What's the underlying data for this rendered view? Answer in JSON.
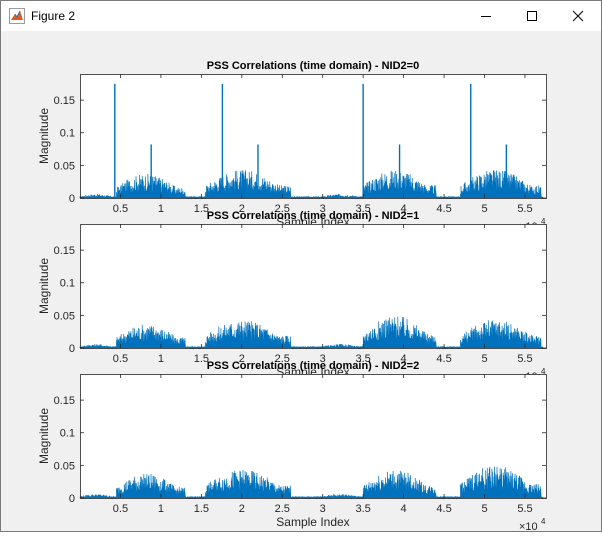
{
  "window": {
    "title": "Figure 2",
    "icon": "matlab-figure-icon",
    "controls": [
      "minimize-icon",
      "maximize-icon",
      "close-icon"
    ]
  },
  "colors": {
    "plot": "#0072bd",
    "axes": "#262626",
    "figure_bg": "#f0f0f0"
  },
  "chart_data": [
    {
      "type": "line",
      "title": "PSS Correlations (time domain) - NID2=0",
      "xlabel": "Sample Index",
      "ylabel": "Magnitude",
      "x_exponent": "×10",
      "x_exponent_power": "4",
      "xlim": [
        0,
        57600
      ],
      "ylim": [
        0,
        0.19
      ],
      "xticks": [
        5000,
        10000,
        15000,
        20000,
        25000,
        30000,
        35000,
        40000,
        45000,
        50000,
        55000
      ],
      "xtick_labels": [
        "0.5",
        "1",
        "1.5",
        "2",
        "2.5",
        "3",
        "3.5",
        "4",
        "4.5",
        "5",
        "5.5"
      ],
      "yticks": [
        0,
        0.05,
        0.1,
        0.15
      ],
      "ytick_labels": [
        "0",
        "0.05",
        "0.1",
        "0.15"
      ],
      "segments": [
        [
          0,
          4500,
          0.005
        ],
        [
          4500,
          13000,
          0.03
        ],
        [
          15500,
          26000,
          0.035
        ],
        [
          30000,
          35000,
          0.005
        ],
        [
          35000,
          44000,
          0.035
        ],
        [
          47000,
          57000,
          0.035
        ]
      ],
      "peaks": [
        [
          4300,
          0.175
        ],
        [
          8800,
          0.082
        ],
        [
          17600,
          0.175
        ],
        [
          22000,
          0.082
        ],
        [
          35000,
          0.175
        ],
        [
          39500,
          0.082
        ],
        [
          48300,
          0.175
        ],
        [
          52700,
          0.082
        ]
      ]
    },
    {
      "type": "line",
      "title": "PSS Correlations (time domain) - NID2=1",
      "xlabel": "Sample Index",
      "ylabel": "Magnitude",
      "x_exponent": "×10",
      "x_exponent_power": "4",
      "xlim": [
        0,
        57600
      ],
      "ylim": [
        0,
        0.19
      ],
      "xticks": [
        5000,
        10000,
        15000,
        20000,
        25000,
        30000,
        35000,
        40000,
        45000,
        50000,
        55000
      ],
      "xtick_labels": [
        "0.5",
        "1",
        "1.5",
        "2",
        "2.5",
        "3",
        "3.5",
        "4",
        "4.5",
        "5",
        "5.5"
      ],
      "yticks": [
        0,
        0.05,
        0.1,
        0.15
      ],
      "ytick_labels": [
        "0",
        "0.05",
        "0.1",
        "0.15"
      ],
      "segments": [
        [
          0,
          4500,
          0.005
        ],
        [
          4500,
          13000,
          0.03
        ],
        [
          15500,
          26000,
          0.035
        ],
        [
          30000,
          35000,
          0.005
        ],
        [
          35000,
          44000,
          0.04
        ],
        [
          47000,
          57000,
          0.035
        ]
      ],
      "peaks": []
    },
    {
      "type": "line",
      "title": "PSS Correlations (time domain) - NID2=2",
      "xlabel": "Sample Index",
      "ylabel": "Magnitude",
      "x_exponent": "×10",
      "x_exponent_power": "4",
      "xlim": [
        0,
        57600
      ],
      "ylim": [
        0,
        0.19
      ],
      "xticks": [
        5000,
        10000,
        15000,
        20000,
        25000,
        30000,
        35000,
        40000,
        45000,
        50000,
        55000
      ],
      "xtick_labels": [
        "0.5",
        "1",
        "1.5",
        "2",
        "2.5",
        "3",
        "3.5",
        "4",
        "4.5",
        "5",
        "5.5"
      ],
      "yticks": [
        0,
        0.05,
        0.1,
        0.15
      ],
      "ytick_labels": [
        "0",
        "0.05",
        "0.1",
        "0.15"
      ],
      "segments": [
        [
          0,
          4500,
          0.005
        ],
        [
          4500,
          13000,
          0.03
        ],
        [
          15500,
          26000,
          0.035
        ],
        [
          30000,
          35000,
          0.005
        ],
        [
          35000,
          44000,
          0.035
        ],
        [
          47000,
          57000,
          0.04
        ]
      ],
      "peaks": []
    }
  ]
}
